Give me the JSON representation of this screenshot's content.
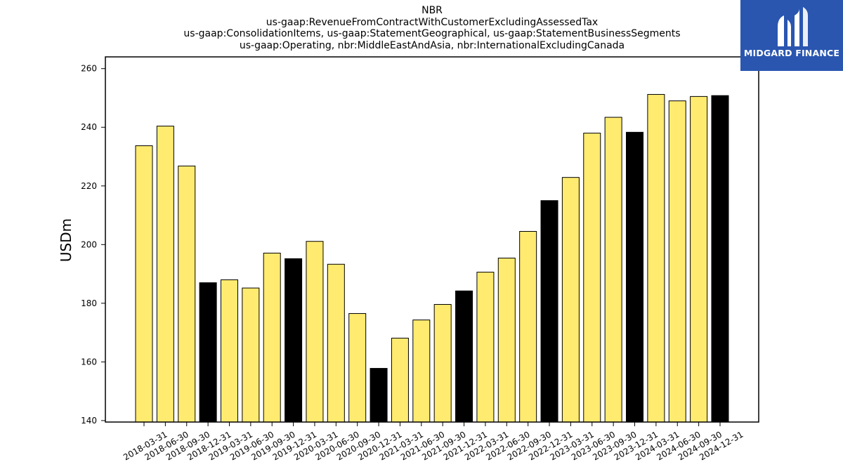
{
  "brand": {
    "name": "MIDGARD FINANCE",
    "logo_icon": "midgard-logo-icon",
    "logo_bg": "#2a56b0"
  },
  "chart_data": {
    "type": "bar",
    "title_lines": [
      "NBR",
      "us-gaap:RevenueFromContractWithCustomerExcludingAssessedTax",
      "us-gaap:ConsolidationItems, us-gaap:StatementGeographical, us-gaap:StatementBusinessSegments",
      "us-gaap:Operating, nbr:MiddleEastAndAsia, nbr:InternationalExcludingCanada"
    ],
    "xlabel": "",
    "ylabel": "USDm",
    "ylim": [
      139.5,
      264
    ],
    "yticks": [
      140,
      160,
      180,
      200,
      220,
      240,
      260
    ],
    "grid": false,
    "colors": {
      "quarter": "#ffeb70",
      "year_end": "#000000",
      "edge": "#000000"
    },
    "categories": [
      "2018-03-31",
      "2018-06-30",
      "2018-09-30",
      "2018-12-31",
      "2019-03-31",
      "2019-06-30",
      "2019-09-30",
      "2019-12-31",
      "2020-03-31",
      "2020-06-30",
      "2020-09-30",
      "2020-12-31",
      "2021-03-31",
      "2021-06-30",
      "2021-09-30",
      "2021-12-31",
      "2022-03-31",
      "2022-06-30",
      "2022-09-30",
      "2022-12-31",
      "2023-03-31",
      "2023-06-30",
      "2023-09-30",
      "2023-12-31",
      "2024-03-31",
      "2024-06-30",
      "2024-09-30",
      "2024-12-31"
    ],
    "values": [
      233.7,
      240.4,
      226.8,
      187.0,
      188.0,
      185.2,
      197.1,
      195.2,
      201.1,
      193.3,
      176.5,
      157.8,
      168.1,
      174.3,
      179.6,
      184.2,
      190.6,
      195.4,
      204.5,
      215.0,
      222.9,
      238.0,
      243.4,
      238.3,
      251.2,
      249.0,
      250.5,
      250.8
    ],
    "highlight": [
      false,
      false,
      false,
      true,
      false,
      false,
      false,
      true,
      false,
      false,
      false,
      true,
      false,
      false,
      false,
      true,
      false,
      false,
      false,
      true,
      false,
      false,
      false,
      true,
      false,
      false,
      false,
      true
    ]
  }
}
